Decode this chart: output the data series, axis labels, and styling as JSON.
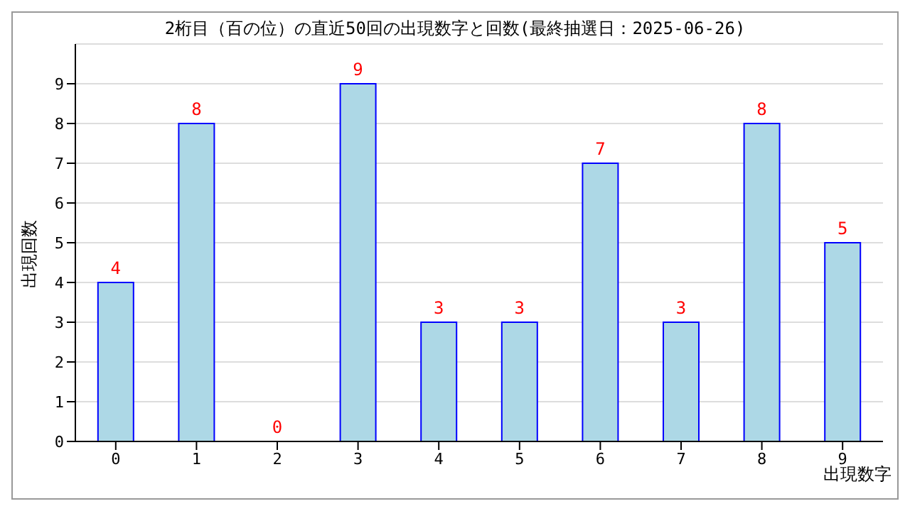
{
  "chart_data": {
    "type": "bar",
    "title": "2桁目（百の位）の直近50回の出現数字と回数(最終抽選日：2025-06-26)",
    "xlabel": "出現数字",
    "ylabel": "出現回数",
    "categories": [
      "0",
      "1",
      "2",
      "3",
      "4",
      "5",
      "6",
      "7",
      "8",
      "9"
    ],
    "series": [
      {
        "color": "#add8e6",
        "values": [
          4,
          8,
          0,
          9,
          3,
          3,
          7,
          3,
          8,
          5
        ]
      }
    ],
    "ylim": [
      0,
      10
    ],
    "yticks": [
      0,
      1,
      2,
      3,
      4,
      5,
      6,
      7,
      8,
      9
    ],
    "grid": "y",
    "data_labels": true,
    "legend": false
  }
}
